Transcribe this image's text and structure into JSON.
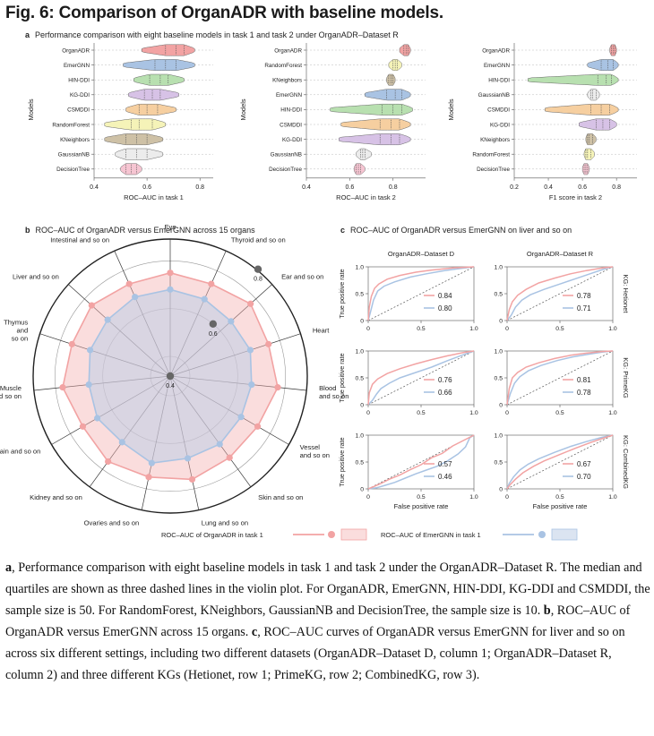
{
  "figure": {
    "title": "Fig. 6: Comparison of OrganADR with baseline models.",
    "panel_a": {
      "letter": "a",
      "text": "Performance comparison with eight baseline models in task 1 and task 2 under OrganADR–Dataset R"
    },
    "panel_b": {
      "letter": "b",
      "text": "ROC–AUC of OrganADR versus EmerGNN across 15 organs"
    },
    "panel_c": {
      "letter": "c",
      "text": "ROC–AUC of OrganADR versus EmerGNN on liver and so on"
    },
    "legend": {
      "organadr": "ROC–AUC of OrganADR in task 1",
      "emergnn": "ROC–AUC of EmerGNN in task 1"
    }
  },
  "colors": {
    "organadr": "#f2a3a3",
    "emergnn": "#a9c3e3",
    "dashed": "#555555"
  },
  "caption": {
    "a_letter": "a",
    "a_text": ", Performance comparison with eight baseline models in task 1 and task 2 under the OrganADR–Dataset R. The median and quartiles are shown as three dashed lines in the violin plot. For OrganADR, EmerGNN, HIN-DDI, KG-DDI and CSMDDI, the sample size is 50. For RandomForest, KNeighbors, GaussianNB and DecisionTree, the sample size is 10. ",
    "b_letter": "b",
    "b_text": ", ROC–AUC of OrganADR versus EmerGNN across 15 organs. ",
    "c_letter": "c",
    "c_text": ", ROC–AUC curves of OrganADR versus EmerGNN for liver and so on across six different settings, including two different datasets (OrganADR–Dataset D, column 1; OrganADR–Dataset R, column 2) and three different KGs (Hetionet, row 1; PrimeKG, row 2; CombinedKG, row 3)."
  },
  "chart_data": [
    {
      "type": "violin",
      "id": "task1",
      "ylabel": "Models",
      "xlabel": "ROC–AUC in task 1",
      "xlim": [
        0.4,
        0.85
      ],
      "xticks": [
        "0.4",
        "0.6",
        "0.8"
      ],
      "tick_values": [
        0.4,
        0.6,
        0.8
      ],
      "models": [
        {
          "name": "OrganADR",
          "color": "#f2a3a3",
          "min": 0.58,
          "q1": 0.67,
          "median": 0.71,
          "q3": 0.74,
          "max": 0.78
        },
        {
          "name": "EmerGNN",
          "color": "#a9c3e3",
          "min": 0.51,
          "q1": 0.63,
          "median": 0.67,
          "q3": 0.71,
          "max": 0.78
        },
        {
          "name": "HIN-DDI",
          "color": "#b8e0b0",
          "min": 0.55,
          "q1": 0.61,
          "median": 0.65,
          "q3": 0.68,
          "max": 0.74
        },
        {
          "name": "KG-DDI",
          "color": "#d7c2e6",
          "min": 0.53,
          "q1": 0.59,
          "median": 0.62,
          "q3": 0.65,
          "max": 0.72
        },
        {
          "name": "CSMDDI",
          "color": "#f6cfa0",
          "min": 0.52,
          "q1": 0.57,
          "median": 0.6,
          "q3": 0.64,
          "max": 0.71
        },
        {
          "name": "RandomForest",
          "color": "#f5f3b8",
          "min": 0.44,
          "q1": 0.54,
          "median": 0.57,
          "q3": 0.62,
          "max": 0.67
        },
        {
          "name": "KNeighbors",
          "color": "#cec1a6",
          "min": 0.44,
          "q1": 0.52,
          "median": 0.56,
          "q3": 0.6,
          "max": 0.66
        },
        {
          "name": "GaussianNB",
          "color": "#ececec",
          "min": 0.48,
          "q1": 0.52,
          "median": 0.56,
          "q3": 0.6,
          "max": 0.66
        },
        {
          "name": "DecisionTree",
          "color": "#f6c5d2",
          "min": 0.5,
          "q1": 0.52,
          "median": 0.54,
          "q3": 0.56,
          "max": 0.58
        }
      ]
    },
    {
      "type": "violin",
      "id": "task2",
      "ylabel": "Models",
      "xlabel": "ROC–AUC in task 2",
      "xlim": [
        0.4,
        0.95
      ],
      "xticks": [
        "0.4",
        "0.6",
        "0.8"
      ],
      "tick_values": [
        0.4,
        0.6,
        0.8
      ],
      "models": [
        {
          "name": "OrganADR",
          "color": "#f2a3a3",
          "min": 0.83,
          "q1": 0.85,
          "median": 0.86,
          "q3": 0.87,
          "max": 0.88
        },
        {
          "name": "RandomForest",
          "color": "#f5f3b8",
          "min": 0.78,
          "q1": 0.8,
          "median": 0.81,
          "q3": 0.82,
          "max": 0.84
        },
        {
          "name": "KNeighbors",
          "color": "#cec1a6",
          "min": 0.77,
          "q1": 0.78,
          "median": 0.79,
          "q3": 0.8,
          "max": 0.81
        },
        {
          "name": "EmerGNN",
          "color": "#a9c3e3",
          "min": 0.67,
          "q1": 0.77,
          "median": 0.81,
          "q3": 0.84,
          "max": 0.88
        },
        {
          "name": "HIN-DDI",
          "color": "#b8e0b0",
          "min": 0.51,
          "q1": 0.75,
          "median": 0.8,
          "q3": 0.84,
          "max": 0.89
        },
        {
          "name": "CSMDDI",
          "color": "#f6cfa0",
          "min": 0.56,
          "q1": 0.74,
          "median": 0.79,
          "q3": 0.83,
          "max": 0.88
        },
        {
          "name": "KG-DDI",
          "color": "#d7c2e6",
          "min": 0.55,
          "q1": 0.74,
          "median": 0.79,
          "q3": 0.83,
          "max": 0.88
        },
        {
          "name": "GaussianNB",
          "color": "#ececec",
          "min": 0.63,
          "q1": 0.65,
          "median": 0.66,
          "q3": 0.67,
          "max": 0.7
        },
        {
          "name": "DecisionTree",
          "color": "#f6c5d2",
          "min": 0.62,
          "q1": 0.63,
          "median": 0.64,
          "q3": 0.65,
          "max": 0.67
        }
      ]
    },
    {
      "type": "violin",
      "id": "f1task2",
      "ylabel": "Models",
      "xlabel": "F1 score in task 2",
      "xlim": [
        0.2,
        0.92
      ],
      "xticks": [
        "0.2",
        "0.4",
        "0.6",
        "0.8"
      ],
      "tick_values": [
        0.2,
        0.4,
        0.6,
        0.8
      ],
      "models": [
        {
          "name": "OrganADR",
          "color": "#f2a3a3",
          "min": 0.76,
          "q1": 0.77,
          "median": 0.78,
          "q3": 0.79,
          "max": 0.8
        },
        {
          "name": "EmerGNN",
          "color": "#a9c3e3",
          "min": 0.63,
          "q1": 0.71,
          "median": 0.75,
          "q3": 0.78,
          "max": 0.81
        },
        {
          "name": "HIN-DDI",
          "color": "#b8e0b0",
          "min": 0.28,
          "q1": 0.69,
          "median": 0.74,
          "q3": 0.77,
          "max": 0.81
        },
        {
          "name": "GaussianNB",
          "color": "#ececec",
          "min": 0.63,
          "q1": 0.65,
          "median": 0.66,
          "q3": 0.68,
          "max": 0.7
        },
        {
          "name": "CSMDDI",
          "color": "#f6cfa0",
          "min": 0.38,
          "q1": 0.65,
          "median": 0.71,
          "q3": 0.76,
          "max": 0.81
        },
        {
          "name": "KG-DDI",
          "color": "#d7c2e6",
          "min": 0.58,
          "q1": 0.68,
          "median": 0.72,
          "q3": 0.76,
          "max": 0.8
        },
        {
          "name": "KNeighbors",
          "color": "#cec1a6",
          "min": 0.62,
          "q1": 0.63,
          "median": 0.64,
          "q3": 0.66,
          "max": 0.68
        },
        {
          "name": "RandomForest",
          "color": "#f5f3b8",
          "min": 0.61,
          "q1": 0.62,
          "median": 0.63,
          "q3": 0.65,
          "max": 0.67
        },
        {
          "name": "DecisionTree",
          "color": "#f6c5d2",
          "min": 0.6,
          "q1": 0.61,
          "median": 0.62,
          "q3": 0.63,
          "max": 0.64
        }
      ]
    },
    {
      "type": "radar",
      "id": "radar",
      "rlim": [
        0.4,
        0.85
      ],
      "rings": [
        0.4,
        0.6,
        0.8
      ],
      "ring_labels": [
        "0.4",
        "0.6",
        "0.8"
      ],
      "organs": [
        "Eye",
        "Thyroid and so on",
        "Ear and so on",
        "Heart",
        "Blood\nand so on",
        "Vessel\nand so on",
        "Skin and so on",
        "Lung and so on",
        "Ovaries and so on",
        "Kidney and so on",
        "Brain and so on",
        "Muscle\nand so on",
        "Thymus\nand\nso on",
        "Liver and so on",
        "Intestinal and so on"
      ],
      "series": [
        {
          "name": "OrganADR",
          "values": [
            0.75,
            0.74,
            0.77,
            0.75,
            0.77,
            0.74,
            0.74,
            0.76,
            0.75,
            0.76,
            0.74,
            0.77,
            0.75,
            0.76,
            0.74
          ]
        },
        {
          "name": "EmerGNN",
          "values": [
            0.68,
            0.67,
            0.66,
            0.67,
            0.66,
            0.66,
            0.67,
            0.67,
            0.69,
            0.66,
            0.67,
            0.66,
            0.67,
            0.67,
            0.68
          ]
        }
      ]
    },
    {
      "type": "roc_grid",
      "id": "roc",
      "col_titles": [
        "OrganADR–Dataset D",
        "OrganADR–Dataset R"
      ],
      "row_titles": [
        "KG: Hetionet",
        "KG: PrimeKG",
        "KG: CombinedKG"
      ],
      "xlabel": "False positive rate",
      "ylabel": "True positive rate",
      "ticks": [
        "0",
        "0.5",
        "1.0"
      ],
      "tick_values": [
        0,
        0.5,
        1.0
      ],
      "panels": [
        {
          "organadr_auc": "0.84",
          "emergnn_auc": "0.80",
          "org": [
            [
              0,
              0
            ],
            [
              0.01,
              0.25
            ],
            [
              0.03,
              0.45
            ],
            [
              0.06,
              0.6
            ],
            [
              0.1,
              0.68
            ],
            [
              0.18,
              0.77
            ],
            [
              0.3,
              0.84
            ],
            [
              0.45,
              0.9
            ],
            [
              0.6,
              0.94
            ],
            [
              0.8,
              0.98
            ],
            [
              1,
              1
            ]
          ],
          "emg": [
            [
              0,
              0
            ],
            [
              0.02,
              0.15
            ],
            [
              0.05,
              0.38
            ],
            [
              0.09,
              0.55
            ],
            [
              0.15,
              0.64
            ],
            [
              0.25,
              0.72
            ],
            [
              0.4,
              0.81
            ],
            [
              0.55,
              0.87
            ],
            [
              0.72,
              0.93
            ],
            [
              0.88,
              0.97
            ],
            [
              1,
              1
            ]
          ]
        },
        {
          "organadr_auc": "0.78",
          "emergnn_auc": "0.71",
          "org": [
            [
              0,
              0
            ],
            [
              0.02,
              0.2
            ],
            [
              0.05,
              0.35
            ],
            [
              0.1,
              0.47
            ],
            [
              0.18,
              0.58
            ],
            [
              0.3,
              0.7
            ],
            [
              0.45,
              0.79
            ],
            [
              0.6,
              0.87
            ],
            [
              0.75,
              0.93
            ],
            [
              0.9,
              0.98
            ],
            [
              1,
              1
            ]
          ],
          "emg": [
            [
              0,
              0
            ],
            [
              0.04,
              0.1
            ],
            [
              0.08,
              0.25
            ],
            [
              0.14,
              0.38
            ],
            [
              0.22,
              0.48
            ],
            [
              0.35,
              0.58
            ],
            [
              0.5,
              0.68
            ],
            [
              0.65,
              0.78
            ],
            [
              0.8,
              0.88
            ],
            [
              0.92,
              0.96
            ],
            [
              1,
              1
            ]
          ]
        },
        {
          "organadr_auc": "0.76",
          "emergnn_auc": "0.66",
          "org": [
            [
              0,
              0
            ],
            [
              0.01,
              0.22
            ],
            [
              0.04,
              0.38
            ],
            [
              0.09,
              0.48
            ],
            [
              0.18,
              0.58
            ],
            [
              0.3,
              0.67
            ],
            [
              0.45,
              0.76
            ],
            [
              0.6,
              0.84
            ],
            [
              0.75,
              0.91
            ],
            [
              0.9,
              0.97
            ],
            [
              1,
              1
            ]
          ],
          "emg": [
            [
              0,
              0
            ],
            [
              0.04,
              0.08
            ],
            [
              0.08,
              0.2
            ],
            [
              0.12,
              0.3
            ],
            [
              0.2,
              0.4
            ],
            [
              0.3,
              0.5
            ],
            [
              0.45,
              0.6
            ],
            [
              0.6,
              0.7
            ],
            [
              0.75,
              0.82
            ],
            [
              0.9,
              0.93
            ],
            [
              1,
              1
            ]
          ]
        },
        {
          "organadr_auc": "0.81",
          "emergnn_auc": "0.78",
          "org": [
            [
              0,
              0
            ],
            [
              0.02,
              0.3
            ],
            [
              0.05,
              0.5
            ],
            [
              0.1,
              0.6
            ],
            [
              0.18,
              0.7
            ],
            [
              0.3,
              0.78
            ],
            [
              0.45,
              0.86
            ],
            [
              0.6,
              0.92
            ],
            [
              0.75,
              0.96
            ],
            [
              0.9,
              0.99
            ],
            [
              1,
              1
            ]
          ],
          "emg": [
            [
              0,
              0
            ],
            [
              0.03,
              0.2
            ],
            [
              0.07,
              0.4
            ],
            [
              0.12,
              0.52
            ],
            [
              0.2,
              0.63
            ],
            [
              0.32,
              0.73
            ],
            [
              0.47,
              0.82
            ],
            [
              0.62,
              0.89
            ],
            [
              0.77,
              0.94
            ],
            [
              0.9,
              0.98
            ],
            [
              1,
              1
            ]
          ]
        },
        {
          "organadr_auc": "0.57",
          "emergnn_auc": "0.46",
          "org": [
            [
              0,
              0
            ],
            [
              0.05,
              0.04
            ],
            [
              0.12,
              0.1
            ],
            [
              0.2,
              0.18
            ],
            [
              0.3,
              0.26
            ],
            [
              0.4,
              0.36
            ],
            [
              0.5,
              0.45
            ],
            [
              0.6,
              0.58
            ],
            [
              0.7,
              0.66
            ],
            [
              0.8,
              0.8
            ],
            [
              0.9,
              0.9
            ],
            [
              1,
              1
            ]
          ],
          "emg": [
            [
              0,
              0
            ],
            [
              0.08,
              0.02
            ],
            [
              0.15,
              0.06
            ],
            [
              0.25,
              0.12
            ],
            [
              0.35,
              0.2
            ],
            [
              0.45,
              0.28
            ],
            [
              0.55,
              0.35
            ],
            [
              0.65,
              0.42
            ],
            [
              0.75,
              0.52
            ],
            [
              0.85,
              0.65
            ],
            [
              0.92,
              0.78
            ],
            [
              0.96,
              0.95
            ],
            [
              1,
              1
            ]
          ]
        },
        {
          "organadr_auc": "0.67",
          "emergnn_auc": "0.70",
          "org": [
            [
              0,
              0
            ],
            [
              0.03,
              0.08
            ],
            [
              0.08,
              0.18
            ],
            [
              0.15,
              0.3
            ],
            [
              0.25,
              0.42
            ],
            [
              0.35,
              0.52
            ],
            [
              0.5,
              0.64
            ],
            [
              0.65,
              0.76
            ],
            [
              0.8,
              0.87
            ],
            [
              0.92,
              0.95
            ],
            [
              1,
              1
            ]
          ],
          "emg": [
            [
              0,
              0
            ],
            [
              0.02,
              0.1
            ],
            [
              0.06,
              0.22
            ],
            [
              0.12,
              0.35
            ],
            [
              0.2,
              0.46
            ],
            [
              0.3,
              0.56
            ],
            [
              0.45,
              0.68
            ],
            [
              0.6,
              0.79
            ],
            [
              0.75,
              0.88
            ],
            [
              0.9,
              0.96
            ],
            [
              1,
              1
            ]
          ]
        }
      ]
    }
  ]
}
